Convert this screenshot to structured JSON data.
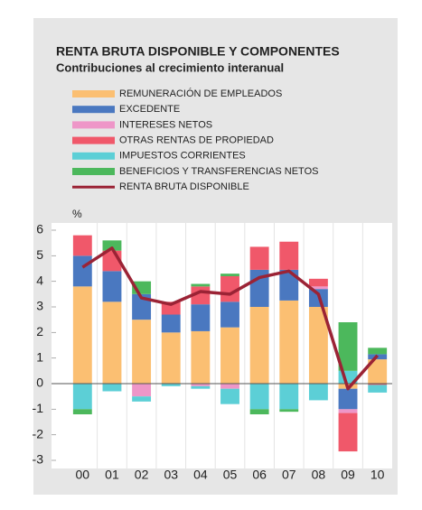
{
  "chart_data": {
    "type": "bar",
    "stacked": true,
    "title": "RENTA BRUTA DISPONIBLE Y COMPONENTES",
    "subtitle": "Contribuciones al crecimiento interanual",
    "y_label": "%",
    "categories": [
      "00",
      "01",
      "02",
      "03",
      "04",
      "05",
      "06",
      "07",
      "08",
      "09",
      "10"
    ],
    "ylim": [
      -3,
      6
    ],
    "yticks": [
      -3,
      -2,
      -1,
      0,
      1,
      2,
      3,
      4,
      5,
      6
    ],
    "series": [
      {
        "name": "REMUNERACIÓN DE EMPLEADOS",
        "color": "#fbbf72",
        "values": [
          3.8,
          3.2,
          2.5,
          2.0,
          2.05,
          2.2,
          3.0,
          3.25,
          3.0,
          -0.2,
          0.95
        ]
      },
      {
        "name": "EXCEDENTE",
        "color": "#4a78c0",
        "values": [
          1.2,
          1.2,
          1.0,
          0.7,
          1.05,
          1.0,
          1.45,
          1.2,
          0.7,
          -0.8,
          0.2
        ]
      },
      {
        "name": "INTERESES NETOS",
        "color": "#ee96c8",
        "values": [
          0,
          0,
          -0.5,
          0,
          -0.1,
          -0.2,
          0,
          0,
          0.1,
          -0.15,
          0
        ]
      },
      {
        "name": "OTRAS RENTAS DE PROPIEDAD",
        "color": "#f0586a",
        "values": [
          0.8,
          0.8,
          0,
          0.5,
          0.7,
          1.0,
          0.9,
          1.1,
          0.3,
          -1.5,
          -0.05
        ]
      },
      {
        "name": "IMPUESTOS CORRIENTES",
        "color": "#5ccfd6",
        "values": [
          -1.0,
          -0.3,
          -0.2,
          -0.1,
          -0.1,
          -0.6,
          -1.0,
          -1.0,
          -0.65,
          0.5,
          -0.3
        ]
      },
      {
        "name": "BENEFICIOS Y TRANSFERENCIAS NETOS",
        "color": "#4cb85c",
        "values": [
          -0.2,
          0.4,
          0.5,
          0,
          0.1,
          0.1,
          -0.2,
          -0.1,
          0,
          1.9,
          0.25
        ]
      },
      {
        "name": "RENTA BRUTA DISPONIBLE",
        "color": "#9b2335",
        "type": "line",
        "values": [
          4.55,
          5.3,
          3.35,
          3.1,
          3.6,
          3.5,
          4.15,
          4.4,
          3.5,
          -0.2,
          1.1
        ]
      }
    ]
  }
}
